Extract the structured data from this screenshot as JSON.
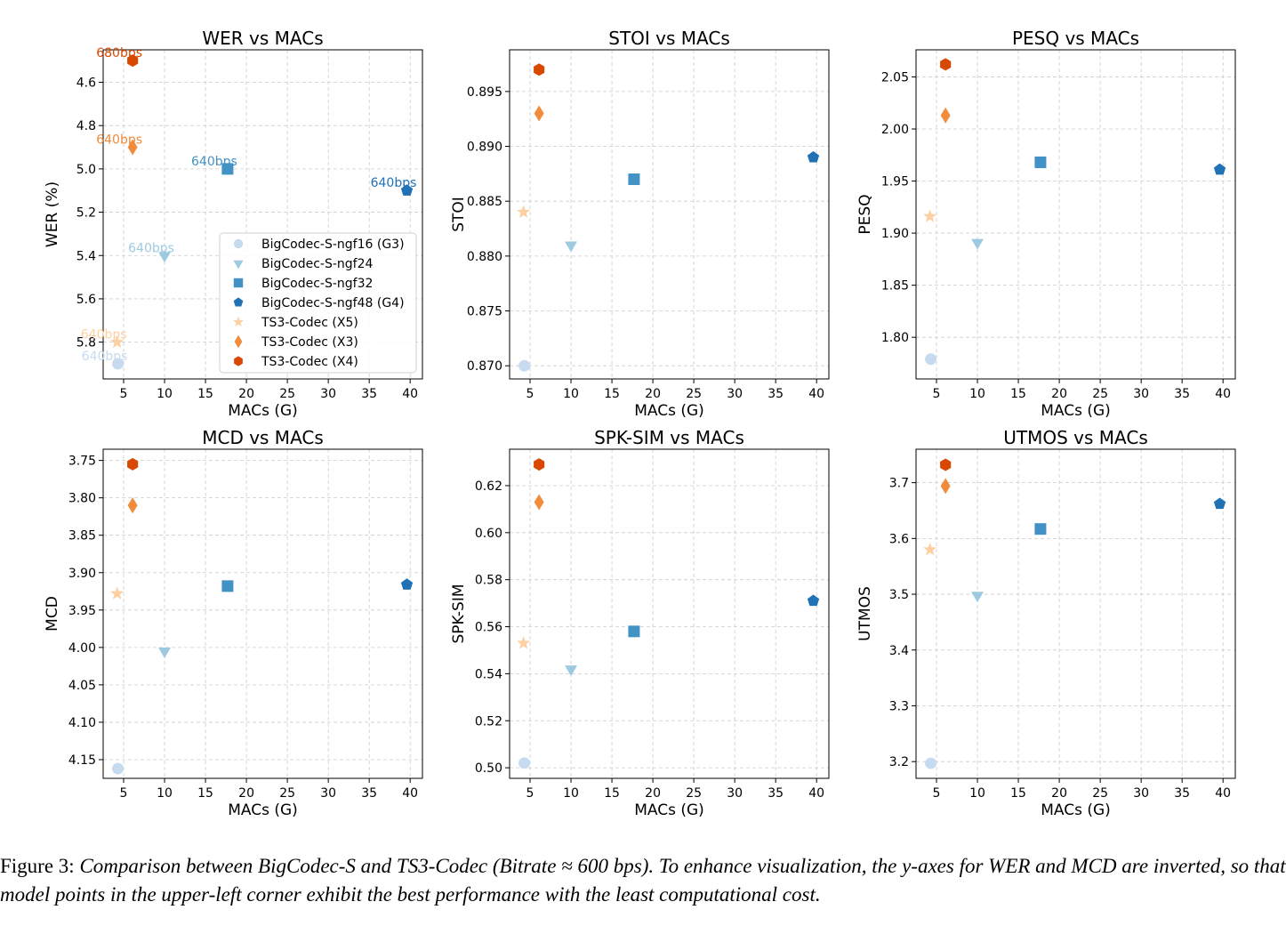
{
  "series_styles": [
    {
      "name": "BigCodec-S-ngf16 (G3)",
      "color": "#c6dbef",
      "marker": "circle"
    },
    {
      "name": "BigCodec-S-ngf24",
      "color": "#9ecae1",
      "marker": "triangle-down"
    },
    {
      "name": "BigCodec-S-ngf32",
      "color": "#4292c6",
      "marker": "square"
    },
    {
      "name": "BigCodec-S-ngf48 (G4)",
      "color": "#2171b5",
      "marker": "pentagon"
    },
    {
      "name": "TS3-Codec (X5)",
      "color": "#fdd0a2",
      "marker": "star"
    },
    {
      "name": "TS3-Codec (X3)",
      "color": "#f08c3c",
      "marker": "diamond"
    },
    {
      "name": "TS3-Codec (X4)",
      "color": "#d94801",
      "marker": "hexagon"
    }
  ],
  "chart_data": [
    {
      "type": "scatter",
      "title": "WER vs MACs",
      "xlabel": "MACs (G)",
      "ylabel": "WER (%)",
      "xlim": [
        2.5,
        41.5
      ],
      "ylim": [
        5.97,
        4.45
      ],
      "inverted_y": true,
      "xticks": [
        5,
        10,
        15,
        20,
        25,
        30,
        35,
        40
      ],
      "yticks": [
        4.6,
        4.8,
        5.0,
        5.2,
        5.4,
        5.6,
        5.8
      ],
      "ytick_labels": [
        "4.6",
        "4.8",
        "5.0",
        "5.2",
        "5.4",
        "5.6",
        "5.8"
      ],
      "grid": true,
      "legend": "lower-right",
      "points": [
        {
          "series": "BigCodec-S-ngf16 (G3)",
          "x": 4.3,
          "y": 5.9,
          "annotation": "640bps"
        },
        {
          "series": "BigCodec-S-ngf24",
          "x": 10.0,
          "y": 5.4,
          "annotation": "640bps"
        },
        {
          "series": "BigCodec-S-ngf32",
          "x": 17.7,
          "y": 5.0,
          "annotation": "640bps"
        },
        {
          "series": "BigCodec-S-ngf48 (G4)",
          "x": 39.6,
          "y": 5.1,
          "annotation": "640bps"
        },
        {
          "series": "TS3-Codec (X5)",
          "x": 4.2,
          "y": 5.8,
          "annotation": "640bps"
        },
        {
          "series": "TS3-Codec (X3)",
          "x": 6.1,
          "y": 4.9,
          "annotation": "640bps"
        },
        {
          "series": "TS3-Codec (X4)",
          "x": 6.1,
          "y": 4.5,
          "annotation": "680bps"
        }
      ]
    },
    {
      "type": "scatter",
      "title": "STOI vs MACs",
      "xlabel": "MACs (G)",
      "ylabel": "STOI",
      "xlim": [
        2.5,
        41.5
      ],
      "ylim": [
        0.8688,
        0.8988
      ],
      "inverted_y": false,
      "xticks": [
        5,
        10,
        15,
        20,
        25,
        30,
        35,
        40
      ],
      "yticks": [
        0.87,
        0.875,
        0.88,
        0.885,
        0.89,
        0.895
      ],
      "ytick_labels": [
        "0.870",
        "0.875",
        "0.880",
        "0.885",
        "0.890",
        "0.895"
      ],
      "grid": true,
      "points": [
        {
          "series": "BigCodec-S-ngf16 (G3)",
          "x": 4.3,
          "y": 0.87
        },
        {
          "series": "BigCodec-S-ngf24",
          "x": 10.0,
          "y": 0.881
        },
        {
          "series": "BigCodec-S-ngf32",
          "x": 17.7,
          "y": 0.887
        },
        {
          "series": "BigCodec-S-ngf48 (G4)",
          "x": 39.6,
          "y": 0.889
        },
        {
          "series": "TS3-Codec (X5)",
          "x": 4.2,
          "y": 0.884
        },
        {
          "series": "TS3-Codec (X3)",
          "x": 6.1,
          "y": 0.893
        },
        {
          "series": "TS3-Codec (X4)",
          "x": 6.1,
          "y": 0.897
        }
      ]
    },
    {
      "type": "scatter",
      "title": "PESQ vs MACs",
      "xlabel": "MACs (G)",
      "ylabel": "PESQ",
      "xlim": [
        2.5,
        41.5
      ],
      "ylim": [
        1.76,
        2.076
      ],
      "inverted_y": false,
      "xticks": [
        5,
        10,
        15,
        20,
        25,
        30,
        35,
        40
      ],
      "yticks": [
        1.8,
        1.85,
        1.9,
        1.95,
        2.0,
        2.05
      ],
      "ytick_labels": [
        "1.80",
        "1.85",
        "1.90",
        "1.95",
        "2.00",
        "2.05"
      ],
      "grid": true,
      "points": [
        {
          "series": "BigCodec-S-ngf16 (G3)",
          "x": 4.3,
          "y": 1.779
        },
        {
          "series": "BigCodec-S-ngf24",
          "x": 10.0,
          "y": 1.891
        },
        {
          "series": "BigCodec-S-ngf32",
          "x": 17.7,
          "y": 1.968
        },
        {
          "series": "BigCodec-S-ngf48 (G4)",
          "x": 39.6,
          "y": 1.961
        },
        {
          "series": "TS3-Codec (X5)",
          "x": 4.2,
          "y": 1.916
        },
        {
          "series": "TS3-Codec (X3)",
          "x": 6.1,
          "y": 2.013
        },
        {
          "series": "TS3-Codec (X4)",
          "x": 6.1,
          "y": 2.062
        }
      ]
    },
    {
      "type": "scatter",
      "title": "MCD vs MACs",
      "xlabel": "MACs (G)",
      "ylabel": "MCD",
      "xlim": [
        2.5,
        41.5
      ],
      "ylim": [
        4.175,
        3.735
      ],
      "inverted_y": true,
      "xticks": [
        5,
        10,
        15,
        20,
        25,
        30,
        35,
        40
      ],
      "yticks": [
        3.75,
        3.8,
        3.85,
        3.9,
        3.95,
        4.0,
        4.05,
        4.1,
        4.15
      ],
      "ytick_labels": [
        "3.75",
        "3.80",
        "3.85",
        "3.90",
        "3.95",
        "4.00",
        "4.05",
        "4.10",
        "4.15"
      ],
      "grid": true,
      "points": [
        {
          "series": "BigCodec-S-ngf16 (G3)",
          "x": 4.3,
          "y": 4.162
        },
        {
          "series": "BigCodec-S-ngf24",
          "x": 10.0,
          "y": 4.005
        },
        {
          "series": "BigCodec-S-ngf32",
          "x": 17.7,
          "y": 3.918
        },
        {
          "series": "BigCodec-S-ngf48 (G4)",
          "x": 39.6,
          "y": 3.916
        },
        {
          "series": "TS3-Codec (X5)",
          "x": 4.2,
          "y": 3.928
        },
        {
          "series": "TS3-Codec (X3)",
          "x": 6.1,
          "y": 3.81
        },
        {
          "series": "TS3-Codec (X4)",
          "x": 6.1,
          "y": 3.755
        }
      ]
    },
    {
      "type": "scatter",
      "title": "SPK-SIM vs MACs",
      "xlabel": "MACs (G)",
      "ylabel": "SPK-SIM",
      "xlim": [
        2.5,
        41.5
      ],
      "ylim": [
        0.4955,
        0.6355
      ],
      "inverted_y": false,
      "xticks": [
        5,
        10,
        15,
        20,
        25,
        30,
        35,
        40
      ],
      "yticks": [
        0.5,
        0.52,
        0.54,
        0.56,
        0.58,
        0.6,
        0.62
      ],
      "ytick_labels": [
        "0.50",
        "0.52",
        "0.54",
        "0.56",
        "0.58",
        "0.60",
        "0.62"
      ],
      "grid": true,
      "points": [
        {
          "series": "BigCodec-S-ngf16 (G3)",
          "x": 4.3,
          "y": 0.502
        },
        {
          "series": "BigCodec-S-ngf24",
          "x": 10.0,
          "y": 0.542
        },
        {
          "series": "BigCodec-S-ngf32",
          "x": 17.7,
          "y": 0.558
        },
        {
          "series": "BigCodec-S-ngf48 (G4)",
          "x": 39.6,
          "y": 0.571
        },
        {
          "series": "TS3-Codec (X5)",
          "x": 4.2,
          "y": 0.553
        },
        {
          "series": "TS3-Codec (X3)",
          "x": 6.1,
          "y": 0.613
        },
        {
          "series": "TS3-Codec (X4)",
          "x": 6.1,
          "y": 0.629
        }
      ]
    },
    {
      "type": "scatter",
      "title": "UTMOS vs MACs",
      "xlabel": "MACs (G)",
      "ylabel": "UTMOS",
      "xlim": [
        2.5,
        41.5
      ],
      "ylim": [
        3.17,
        3.76
      ],
      "inverted_y": false,
      "xticks": [
        5,
        10,
        15,
        20,
        25,
        30,
        35,
        40
      ],
      "yticks": [
        3.2,
        3.3,
        3.4,
        3.5,
        3.6,
        3.7
      ],
      "ytick_labels": [
        "3.2",
        "3.3",
        "3.4",
        "3.5",
        "3.6",
        "3.7"
      ],
      "grid": true,
      "points": [
        {
          "series": "BigCodec-S-ngf16 (G3)",
          "x": 4.3,
          "y": 3.197
        },
        {
          "series": "BigCodec-S-ngf24",
          "x": 10.0,
          "y": 3.498
        },
        {
          "series": "BigCodec-S-ngf32",
          "x": 17.7,
          "y": 3.617
        },
        {
          "series": "BigCodec-S-ngf48 (G4)",
          "x": 39.6,
          "y": 3.662
        },
        {
          "series": "TS3-Codec (X5)",
          "x": 4.2,
          "y": 3.58
        },
        {
          "series": "TS3-Codec (X3)",
          "x": 6.1,
          "y": 3.694
        },
        {
          "series": "TS3-Codec (X4)",
          "x": 6.1,
          "y": 3.732
        }
      ]
    }
  ],
  "caption": {
    "label": "Figure 3:",
    "text": "Comparison between BigCodec-S and TS3-Codec (Bitrate ≈ 600 bps). To enhance visualization, the y-axes for WER and MCD are inverted, so that model points in the upper-left corner exhibit the best performance with the least computational cost."
  }
}
